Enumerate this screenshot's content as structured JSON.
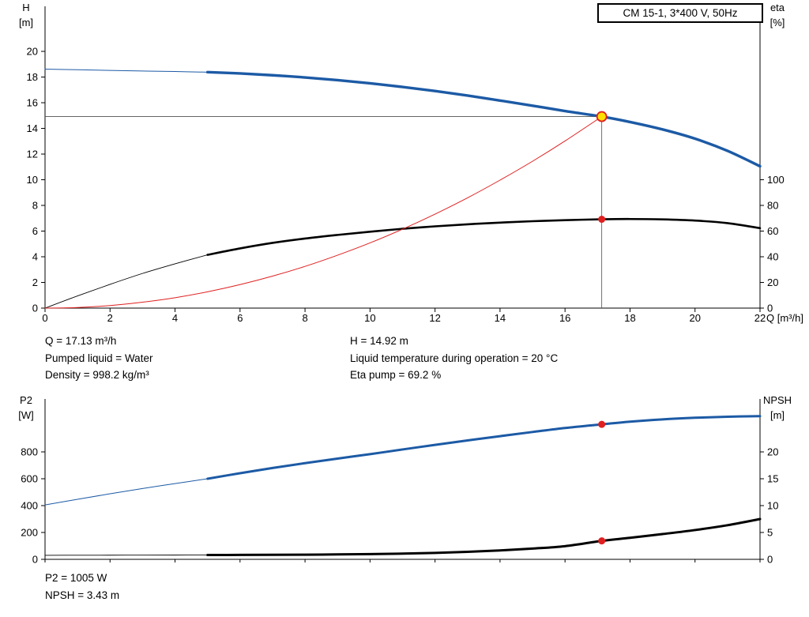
{
  "title_box": {
    "label": "CM 15-1, 3*400 V, 50Hz"
  },
  "info_top": {
    "q": "Q = 17.13 m³/h",
    "pumped_liquid": "Pumped liquid = Water",
    "density": "Density = 998.2 kg/m³",
    "h": "H = 14.92 m",
    "liquid_temp": "Liquid temperature during operation = 20 °C",
    "eta_pump": "Eta pump = 69.2 %"
  },
  "info_bottom": {
    "p2": "P2 = 1005 W",
    "npsh": "NPSH = 3.43 m"
  },
  "colors": {
    "curve_blue": "#1c5aa5",
    "curve_black": "#000000",
    "system_red": "#e02020",
    "duty_yellow": "#ffdf00",
    "axis": "#000000",
    "guide": "#505050"
  },
  "chart_data": [
    {
      "name": "hq-chart",
      "type": "line",
      "title": "CM 15-1, 3*400 V, 50Hz",
      "x": {
        "label": "Q [m³/h]",
        "min": 0,
        "max": 22,
        "ticks": [
          0,
          2,
          4,
          6,
          8,
          10,
          12,
          14,
          16,
          18,
          20,
          22
        ],
        "show_labels": true
      },
      "y_left": {
        "label_lines": [
          "H",
          "[m]"
        ],
        "min": 0,
        "max": 23.51,
        "ticks": [
          0,
          2,
          4,
          6,
          8,
          10,
          12,
          14,
          16,
          18,
          20
        ]
      },
      "y_right": {
        "label_lines": [
          "eta",
          "[%]"
        ],
        "min": 0,
        "max": 235.1,
        "ticks": [
          0,
          20,
          40,
          60,
          80,
          100
        ]
      },
      "grid": false,
      "series": [
        {
          "name": "head-curve-thin",
          "axis": "left",
          "color": "#1c5aa5",
          "width": 1,
          "points": [
            [
              0,
              18.62
            ],
            [
              1,
              18.57
            ],
            [
              2,
              18.52
            ],
            [
              3,
              18.47
            ],
            [
              4,
              18.43
            ],
            [
              5,
              18.38
            ]
          ]
        },
        {
          "name": "head-curve",
          "axis": "left",
          "color": "#1c5aa5",
          "width": 3.4,
          "points": [
            [
              5,
              18.38
            ],
            [
              6,
              18.28
            ],
            [
              7,
              18.14
            ],
            [
              8,
              17.97
            ],
            [
              9,
              17.76
            ],
            [
              10,
              17.51
            ],
            [
              11,
              17.23
            ],
            [
              12,
              16.91
            ],
            [
              13,
              16.56
            ],
            [
              14,
              16.17
            ],
            [
              15,
              15.77
            ],
            [
              16,
              15.35
            ],
            [
              17.13,
              14.92
            ],
            [
              18,
              14.5
            ],
            [
              19,
              13.92
            ],
            [
              20,
              13.2
            ],
            [
              21,
              12.25
            ],
            [
              22,
              11.05
            ]
          ]
        },
        {
          "name": "eta-curve-thin",
          "axis": "right",
          "color": "#000000",
          "width": 0.9,
          "points": [
            [
              0,
              0
            ],
            [
              1,
              9.5
            ],
            [
              2,
              18.5
            ],
            [
              3,
              27
            ],
            [
              4,
              34.5
            ],
            [
              5,
              41.5
            ]
          ]
        },
        {
          "name": "eta-curve",
          "axis": "right",
          "color": "#000000",
          "width": 2.6,
          "points": [
            [
              5,
              41.5
            ],
            [
              6,
              46.5
            ],
            [
              7,
              50.8
            ],
            [
              8,
              54.2
            ],
            [
              9,
              57
            ],
            [
              10,
              59.5
            ],
            [
              11,
              61.8
            ],
            [
              12,
              63.7
            ],
            [
              13,
              65.3
            ],
            [
              14,
              66.6
            ],
            [
              15,
              67.7
            ],
            [
              16,
              68.5
            ],
            [
              17.13,
              69.2
            ],
            [
              18,
              69.4
            ],
            [
              19,
              69.1
            ],
            [
              20,
              68.2
            ],
            [
              21,
              66.2
            ],
            [
              22,
              62.3
            ]
          ]
        },
        {
          "name": "system-curve",
          "axis": "left",
          "color": "#e02020",
          "width": 1,
          "points": [
            [
              0,
              0
            ],
            [
              1,
              0.05
            ],
            [
              2,
              0.2
            ],
            [
              3,
              0.46
            ],
            [
              4,
              0.81
            ],
            [
              5,
              1.27
            ],
            [
              6,
              1.83
            ],
            [
              7,
              2.49
            ],
            [
              8,
              3.25
            ],
            [
              9,
              4.12
            ],
            [
              10,
              5.08
            ],
            [
              11,
              6.15
            ],
            [
              12,
              7.32
            ],
            [
              13,
              8.59
            ],
            [
              14,
              9.97
            ],
            [
              15,
              11.44
            ],
            [
              16,
              13.02
            ],
            [
              17.13,
              14.92
            ]
          ]
        }
      ],
      "guides": [
        {
          "type": "v",
          "axis": "left",
          "q": 17.13,
          "v_from": 0,
          "v_to": 14.92,
          "color": "#505050",
          "width": 0.8
        },
        {
          "type": "h",
          "axis": "left",
          "v": 14.92,
          "q_from": 0,
          "q_to": 17.13,
          "color": "#505050",
          "width": 0.8
        }
      ],
      "markers": [
        {
          "name": "duty-point-head",
          "axis": "left",
          "q": 17.13,
          "v": 14.92,
          "r": 6,
          "fill": "#ffdf00",
          "stroke": "#e02020",
          "stroke_width": 1.8
        },
        {
          "name": "duty-point-eta",
          "axis": "right",
          "q": 17.13,
          "v": 69.2,
          "r": 4.5,
          "fill": "#e02020",
          "stroke": "none",
          "stroke_width": 0
        }
      ],
      "duty_point": {
        "q_m3h": 17.13,
        "h_m": 14.92,
        "eta_pct": 69.2
      }
    },
    {
      "name": "p2-npsh-chart",
      "type": "line",
      "title": "",
      "x": {
        "label": "",
        "min": 0,
        "max": 22,
        "ticks": [
          0,
          2,
          4,
          6,
          8,
          10,
          12,
          14,
          16,
          18,
          20,
          22
        ],
        "show_labels": false
      },
      "y_left": {
        "label_lines": [
          "P2",
          "[W]"
        ],
        "min": 0,
        "max": 1194,
        "ticks": [
          0,
          200,
          400,
          600,
          800
        ]
      },
      "y_right": {
        "label_lines": [
          "NPSH",
          "[m]"
        ],
        "min": 0,
        "max": 29.85,
        "ticks": [
          0,
          5,
          10,
          15,
          20
        ]
      },
      "grid": false,
      "series": [
        {
          "name": "p2-curve-thin",
          "axis": "left",
          "color": "#1c5aa5",
          "width": 1,
          "points": [
            [
              0,
              405
            ],
            [
              1,
              447
            ],
            [
              2,
              488
            ],
            [
              3,
              527
            ],
            [
              4,
              564
            ],
            [
              5,
              600
            ]
          ]
        },
        {
          "name": "p2-curve",
          "axis": "left",
          "color": "#1c5aa5",
          "width": 3,
          "points": [
            [
              5,
              600
            ],
            [
              6,
              641
            ],
            [
              7,
              680
            ],
            [
              8,
              716
            ],
            [
              9,
              750
            ],
            [
              10,
              783
            ],
            [
              11,
              818
            ],
            [
              12,
              852
            ],
            [
              13,
              885
            ],
            [
              14,
              917
            ],
            [
              15,
              948
            ],
            [
              16,
              978
            ],
            [
              17.13,
              1005
            ],
            [
              18,
              1025
            ],
            [
              19,
              1042
            ],
            [
              20,
              1054
            ],
            [
              21,
              1062
            ],
            [
              22,
              1066
            ]
          ]
        },
        {
          "name": "npsh-curve-thin",
          "axis": "right",
          "color": "#000000",
          "width": 0.9,
          "points": [
            [
              0,
              0.75
            ],
            [
              1,
              0.76
            ],
            [
              2,
              0.77
            ],
            [
              3,
              0.78
            ],
            [
              4,
              0.79
            ],
            [
              5,
              0.8
            ]
          ]
        },
        {
          "name": "npsh-curve",
          "axis": "right",
          "color": "#000000",
          "width": 3,
          "points": [
            [
              5,
              0.8
            ],
            [
              6,
              0.82
            ],
            [
              7,
              0.84
            ],
            [
              8,
              0.87
            ],
            [
              9,
              0.91
            ],
            [
              10,
              0.97
            ],
            [
              11,
              1.06
            ],
            [
              12,
              1.2
            ],
            [
              13,
              1.4
            ],
            [
              14,
              1.66
            ],
            [
              15,
              2.0
            ],
            [
              16,
              2.45
            ],
            [
              17.13,
              3.43
            ],
            [
              18,
              4.0
            ],
            [
              19,
              4.7
            ],
            [
              20,
              5.45
            ],
            [
              21,
              6.35
            ],
            [
              22,
              7.5
            ]
          ]
        }
      ],
      "guides": [],
      "markers": [
        {
          "name": "duty-point-p2",
          "axis": "left",
          "q": 17.13,
          "v": 1005,
          "r": 4.5,
          "fill": "#e02020",
          "stroke": "none",
          "stroke_width": 0
        },
        {
          "name": "duty-point-npsh",
          "axis": "right",
          "q": 17.13,
          "v": 3.43,
          "r": 4.5,
          "fill": "#e02020",
          "stroke": "none",
          "stroke_width": 0
        }
      ],
      "duty_point": {
        "q_m3h": 17.13,
        "p2_w": 1005,
        "npsh_m": 3.43
      }
    }
  ]
}
